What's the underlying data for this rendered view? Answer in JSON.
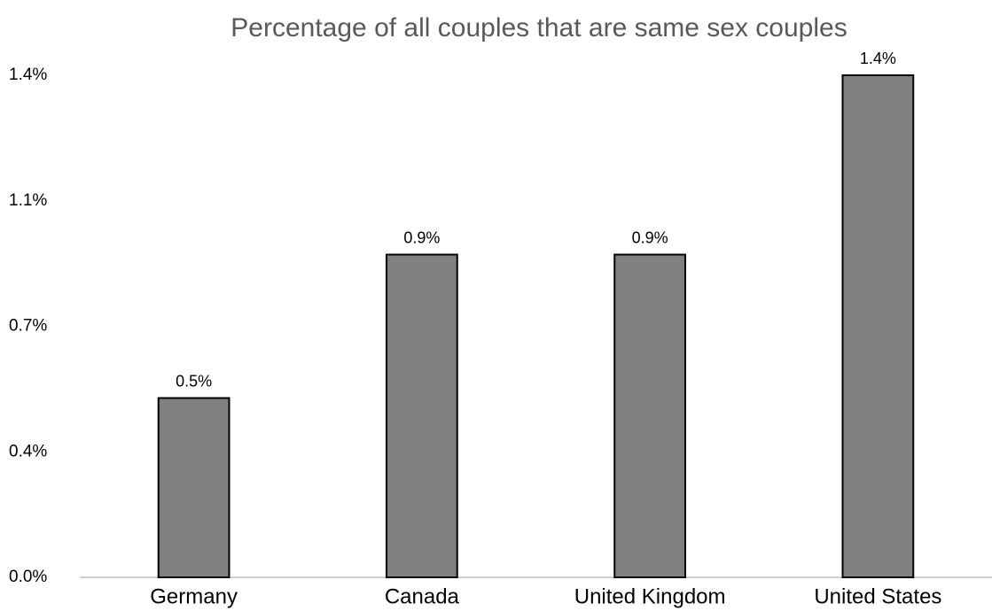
{
  "chart_data": {
    "type": "bar",
    "title": "Percentage of all couples that are same sex couples",
    "categories": [
      "Germany",
      "Canada",
      "United Kingdom",
      "United States"
    ],
    "values": [
      0.5,
      0.9,
      0.9,
      1.4
    ],
    "value_labels": [
      "0.5%",
      "0.9%",
      "0.9%",
      "1.4%"
    ],
    "color": "#808080",
    "ylim": [
      0,
      1.4
    ],
    "yticks": [
      {
        "value": 0,
        "label": "0.0%"
      },
      {
        "value": 0.35,
        "label": "0.4%"
      },
      {
        "value": 0.7,
        "label": "0.7%"
      },
      {
        "value": 1.05,
        "label": "1.1%"
      },
      {
        "value": 1.4,
        "label": "1.4%"
      }
    ],
    "grid": false
  }
}
